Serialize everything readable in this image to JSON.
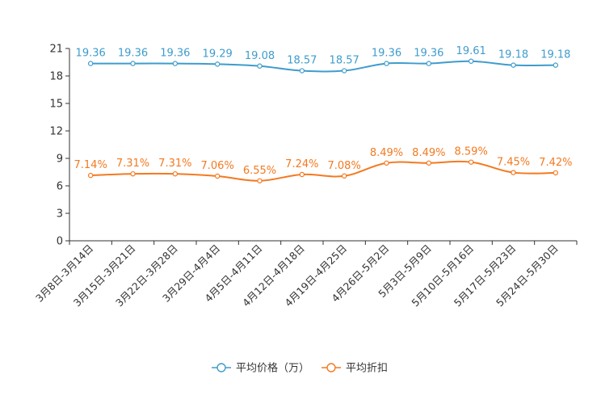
{
  "chart_data": {
    "type": "line",
    "categories": [
      "3月8日-3月14日",
      "3月15日-3月21日",
      "3月22日-3月28日",
      "3月29日-4月4日",
      "4月5日-4月11日",
      "4月12日-4月18日",
      "4月19日-4月25日",
      "4月26日-5月2日",
      "5月3日-5月9日",
      "5月10日-5月16日",
      "5月17日-5月23日",
      "5月24日-5月30日"
    ],
    "series": [
      {
        "name": "平均价格（万）",
        "color": "#3e9ccc",
        "values": [
          19.36,
          19.36,
          19.36,
          19.29,
          19.08,
          18.57,
          18.57,
          19.36,
          19.36,
          19.61,
          19.18,
          19.18
        ],
        "labels": [
          "19.36",
          "19.36",
          "19.36",
          "19.29",
          "19.08",
          "18.57",
          "18.57",
          "19.36",
          "19.36",
          "19.61",
          "19.18",
          "19.18"
        ]
      },
      {
        "name": "平均折扣",
        "color": "#f47920",
        "values": [
          7.14,
          7.31,
          7.31,
          7.06,
          6.55,
          7.24,
          7.08,
          8.49,
          8.49,
          8.59,
          7.45,
          7.42
        ],
        "labels": [
          "7.14%",
          "7.31%",
          "7.31%",
          "7.06%",
          "6.55%",
          "7.24%",
          "7.08%",
          "8.49%",
          "8.49%",
          "8.59%",
          "7.45%",
          "7.42%"
        ]
      }
    ],
    "ylim": [
      0,
      21
    ],
    "yticks": [
      "0",
      "3",
      "6",
      "9",
      "12",
      "15",
      "18",
      "21"
    ],
    "legend_position": "bottom-center",
    "grid": false,
    "axis_color": "#333333",
    "text_color": "#333333"
  }
}
